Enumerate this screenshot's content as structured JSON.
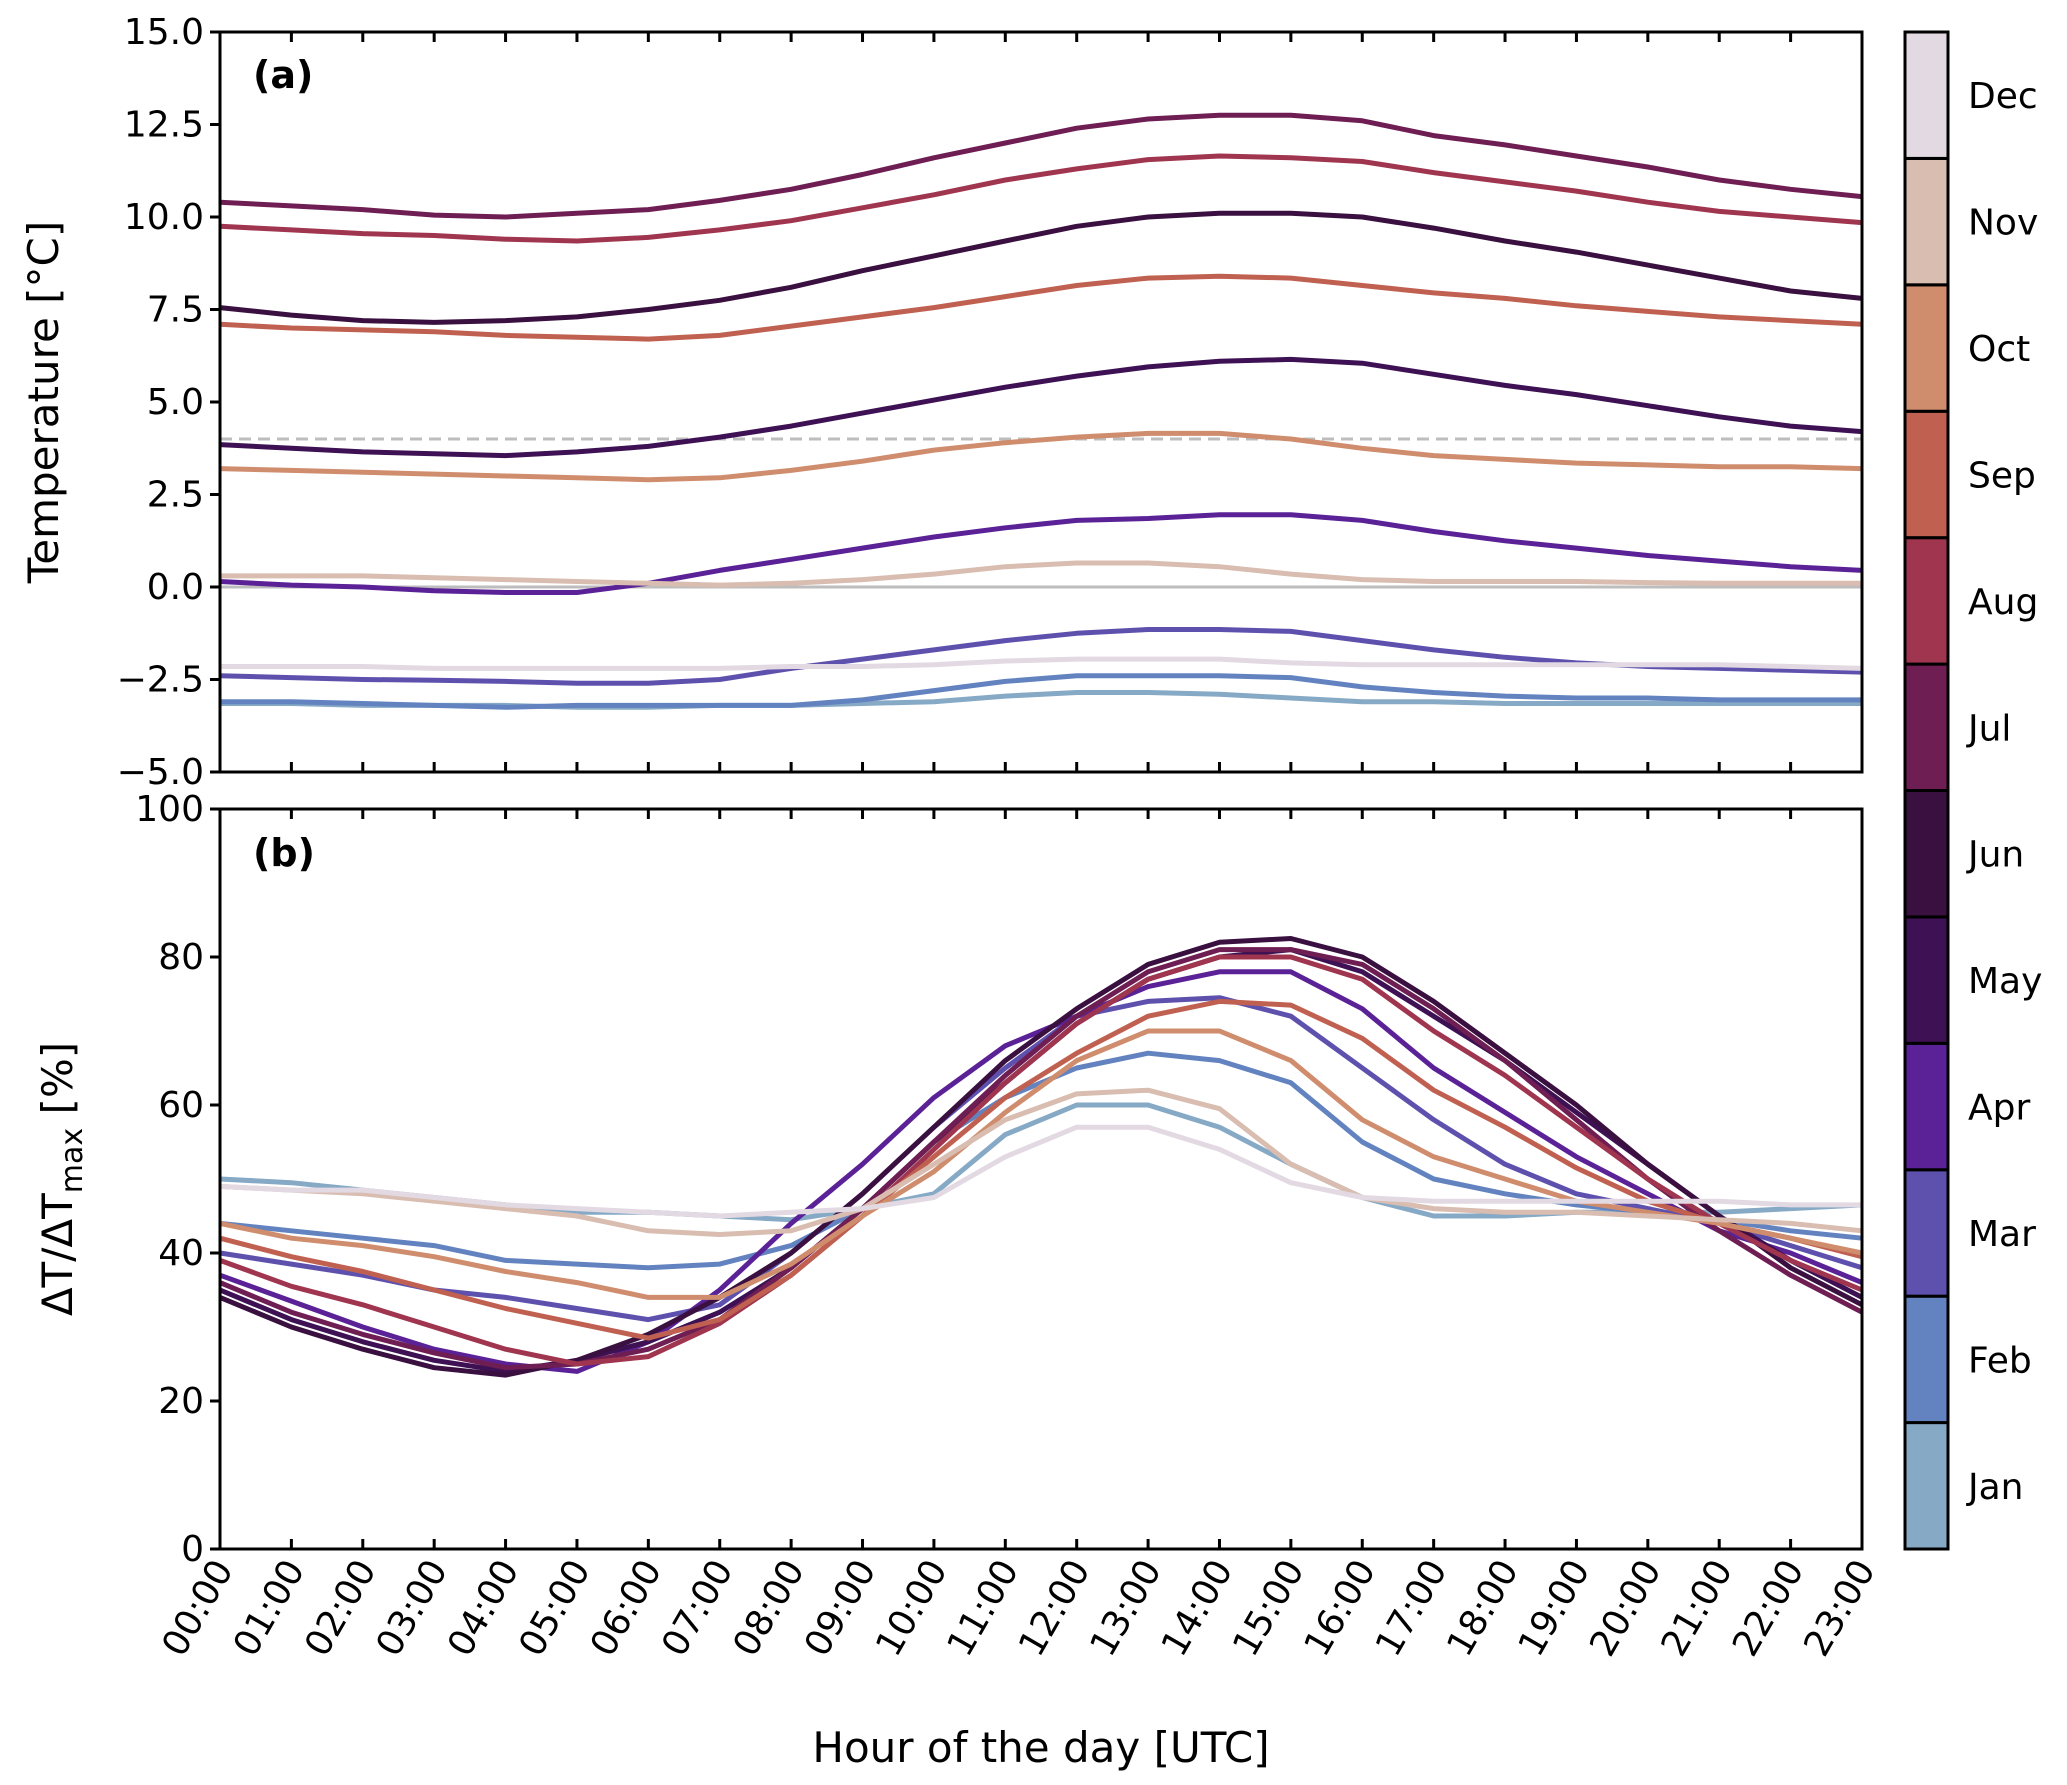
{
  "chart_data": [
    {
      "panel": "a",
      "type": "line",
      "panel_label": "(a)",
      "ylabel": "Temperature [°C]",
      "xlabel": "",
      "ylim": [
        -5.0,
        15.0
      ],
      "yticks": [
        "−5.0",
        "−2.5",
        "0.0",
        "2.5",
        "5.0",
        "7.5",
        "10.0",
        "12.5",
        "15.0"
      ],
      "ytick_values": [
        -5.0,
        -2.5,
        0.0,
        2.5,
        5.0,
        7.5,
        10.0,
        12.5,
        15.0
      ],
      "reference_lines": [
        {
          "value": 4.0,
          "style": "dashed",
          "color": "#bdbdbd"
        },
        {
          "value": 0.0,
          "style": "solid",
          "color": "#bdbdbd"
        }
      ],
      "series": [
        {
          "name": "Jan",
          "color": "#86a9c6",
          "values": [
            -3.15,
            -3.15,
            -3.2,
            -3.2,
            -3.2,
            -3.25,
            -3.25,
            -3.2,
            -3.2,
            -3.15,
            -3.1,
            -2.95,
            -2.85,
            -2.85,
            -2.9,
            -3.0,
            -3.1,
            -3.1,
            -3.15,
            -3.15,
            -3.15,
            -3.15,
            -3.15,
            -3.15
          ]
        },
        {
          "name": "Feb",
          "color": "#6283bf",
          "values": [
            -3.1,
            -3.1,
            -3.15,
            -3.2,
            -3.25,
            -3.2,
            -3.2,
            -3.2,
            -3.2,
            -3.05,
            -2.8,
            -2.55,
            -2.4,
            -2.4,
            -2.4,
            -2.45,
            -2.7,
            -2.85,
            -2.95,
            -3.0,
            -3.0,
            -3.05,
            -3.05,
            -3.05
          ]
        },
        {
          "name": "Mar",
          "color": "#5e51ae",
          "values": [
            -2.4,
            -2.45,
            -2.5,
            -2.52,
            -2.55,
            -2.6,
            -2.6,
            -2.5,
            -2.2,
            -1.95,
            -1.7,
            -1.45,
            -1.25,
            -1.15,
            -1.15,
            -1.2,
            -1.45,
            -1.7,
            -1.9,
            -2.05,
            -2.15,
            -2.2,
            -2.25,
            -2.3
          ]
        },
        {
          "name": "Apr",
          "color": "#5a2296",
          "values": [
            0.15,
            0.05,
            0.0,
            -0.1,
            -0.15,
            -0.15,
            0.1,
            0.45,
            0.75,
            1.05,
            1.35,
            1.6,
            1.8,
            1.85,
            1.95,
            1.95,
            1.8,
            1.5,
            1.25,
            1.05,
            0.85,
            0.7,
            0.55,
            0.45
          ]
        },
        {
          "name": "May",
          "color": "#3d1153",
          "values": [
            3.85,
            3.75,
            3.65,
            3.6,
            3.55,
            3.65,
            3.8,
            4.05,
            4.35,
            4.7,
            5.05,
            5.4,
            5.7,
            5.95,
            6.1,
            6.15,
            6.05,
            5.75,
            5.45,
            5.2,
            4.9,
            4.6,
            4.35,
            4.2
          ]
        },
        {
          "name": "Jun",
          "color": "#3a1040",
          "values": [
            7.55,
            7.35,
            7.2,
            7.15,
            7.2,
            7.3,
            7.5,
            7.75,
            8.1,
            8.55,
            8.95,
            9.35,
            9.75,
            10.0,
            10.1,
            10.1,
            10.0,
            9.7,
            9.35,
            9.05,
            8.7,
            8.35,
            8.0,
            7.8
          ]
        },
        {
          "name": "Jul",
          "color": "#6e1e53",
          "values": [
            10.4,
            10.3,
            10.2,
            10.05,
            10.0,
            10.1,
            10.2,
            10.45,
            10.75,
            11.15,
            11.6,
            12.0,
            12.4,
            12.65,
            12.75,
            12.75,
            12.6,
            12.2,
            11.95,
            11.65,
            11.35,
            11.0,
            10.75,
            10.55
          ]
        },
        {
          "name": "Aug",
          "color": "#a0354f",
          "values": [
            9.75,
            9.65,
            9.55,
            9.5,
            9.4,
            9.35,
            9.45,
            9.65,
            9.9,
            10.25,
            10.6,
            11.0,
            11.3,
            11.55,
            11.65,
            11.6,
            11.5,
            11.2,
            10.95,
            10.7,
            10.4,
            10.15,
            10.0,
            9.85
          ]
        },
        {
          "name": "Sep",
          "color": "#c06050",
          "values": [
            7.1,
            7.0,
            6.95,
            6.9,
            6.8,
            6.75,
            6.7,
            6.8,
            7.05,
            7.3,
            7.55,
            7.85,
            8.15,
            8.35,
            8.4,
            8.35,
            8.15,
            7.95,
            7.8,
            7.6,
            7.45,
            7.3,
            7.2,
            7.1
          ]
        },
        {
          "name": "Oct",
          "color": "#cf8d6e",
          "values": [
            3.2,
            3.15,
            3.1,
            3.05,
            3.0,
            2.95,
            2.9,
            2.95,
            3.15,
            3.4,
            3.7,
            3.9,
            4.05,
            4.15,
            4.15,
            4.0,
            3.75,
            3.55,
            3.45,
            3.35,
            3.3,
            3.25,
            3.25,
            3.2
          ]
        },
        {
          "name": "Nov",
          "color": "#d8bdb0",
          "values": [
            0.3,
            0.3,
            0.3,
            0.25,
            0.2,
            0.15,
            0.1,
            0.05,
            0.1,
            0.2,
            0.35,
            0.55,
            0.65,
            0.65,
            0.55,
            0.35,
            0.2,
            0.15,
            0.15,
            0.15,
            0.12,
            0.1,
            0.1,
            0.1
          ]
        },
        {
          "name": "Dec",
          "color": "#e2d9e2",
          "values": [
            -2.15,
            -2.15,
            -2.15,
            -2.2,
            -2.2,
            -2.2,
            -2.2,
            -2.2,
            -2.15,
            -2.15,
            -2.1,
            -2.0,
            -1.95,
            -1.95,
            -1.95,
            -2.05,
            -2.1,
            -2.1,
            -2.1,
            -2.1,
            -2.1,
            -2.1,
            -2.15,
            -2.2
          ]
        }
      ]
    },
    {
      "panel": "b",
      "type": "line",
      "panel_label": "(b)",
      "ylabel_main": "ΔT/ΔT",
      "ylabel_sub": "max",
      "ylabel_suffix": " [%]",
      "xlabel": "Hour of the day [UTC]",
      "ylim": [
        0,
        100
      ],
      "yticks": [
        "0",
        "20",
        "40",
        "60",
        "80",
        "100"
      ],
      "ytick_values": [
        0,
        20,
        40,
        60,
        80,
        100
      ],
      "series": [
        {
          "name": "Jan",
          "color": "#86a9c6",
          "values": [
            50,
            49.5,
            48.5,
            47.5,
            46.5,
            45.5,
            45.5,
            45,
            44.5,
            46,
            48,
            56,
            60,
            60,
            57,
            52,
            47.5,
            45,
            45,
            45.5,
            45.5,
            45.5,
            46,
            46.5
          ]
        },
        {
          "name": "Feb",
          "color": "#6283bf",
          "values": [
            44,
            43,
            42,
            41,
            39,
            38.5,
            38,
            38.5,
            41,
            46,
            55,
            61,
            65,
            67,
            66,
            63,
            55,
            50,
            48,
            46.5,
            45.5,
            44.5,
            43,
            42
          ]
        },
        {
          "name": "Mar",
          "color": "#5e51ae",
          "values": [
            40,
            38.5,
            37,
            35,
            34,
            32.5,
            31,
            33,
            40,
            48,
            57,
            65,
            72,
            74,
            74.5,
            72,
            65,
            58,
            52,
            48,
            46,
            44,
            41,
            38
          ]
        },
        {
          "name": "Apr",
          "color": "#5a2296",
          "values": [
            37,
            33.5,
            30,
            27,
            25,
            24,
            28,
            35,
            44,
            52,
            61,
            68,
            72,
            76,
            78,
            78,
            73,
            65,
            59,
            53,
            48,
            43,
            40,
            36
          ]
        },
        {
          "name": "May",
          "color": "#3d1153",
          "values": [
            35,
            31,
            28,
            25.5,
            24,
            25.5,
            28,
            32,
            38,
            46,
            55,
            63,
            71,
            77,
            80,
            81,
            78,
            72,
            66,
            59,
            52,
            45,
            39,
            34
          ]
        },
        {
          "name": "Jun",
          "color": "#3a1040",
          "values": [
            34,
            30,
            27,
            24.5,
            23.5,
            25.5,
            29,
            34,
            40,
            48,
            57,
            66,
            73,
            79,
            82,
            82.5,
            80,
            74,
            67,
            60,
            52,
            45,
            38,
            33
          ]
        },
        {
          "name": "Jul",
          "color": "#6e1e53",
          "values": [
            36,
            32,
            29,
            26.5,
            24.5,
            25,
            27,
            31,
            38,
            46,
            55,
            64,
            72,
            78,
            81,
            81,
            79,
            73,
            66,
            58,
            50,
            43,
            37,
            32
          ]
        },
        {
          "name": "Aug",
          "color": "#a0354f",
          "values": [
            39,
            35.5,
            33,
            30,
            27,
            25,
            26,
            30.5,
            37,
            45,
            54,
            63,
            71,
            77,
            80,
            80,
            77,
            70,
            64,
            57,
            50,
            44,
            39,
            35
          ]
        },
        {
          "name": "Sep",
          "color": "#c06050",
          "values": [
            42,
            39.5,
            37.5,
            35,
            32.5,
            30.5,
            28.5,
            31,
            37,
            45,
            53,
            61,
            67,
            72,
            74,
            73.5,
            69,
            62,
            57,
            51.5,
            47,
            44,
            42,
            39.5
          ]
        },
        {
          "name": "Oct",
          "color": "#cf8d6e",
          "values": [
            44,
            42,
            41,
            39.5,
            37.5,
            36,
            34,
            34,
            38.5,
            45,
            51,
            59,
            66,
            70,
            70,
            66,
            58,
            53,
            50,
            47,
            45.5,
            44,
            42,
            40
          ]
        },
        {
          "name": "Nov",
          "color": "#d8bdb0",
          "values": [
            49,
            48.5,
            48,
            47,
            46,
            45,
            43,
            42.5,
            43,
            46,
            52,
            58,
            61.5,
            62,
            59.5,
            52,
            47.5,
            46,
            45.5,
            45.5,
            45,
            44.5,
            44,
            43
          ]
        },
        {
          "name": "Dec",
          "color": "#e2d9e2",
          "values": [
            49,
            48.5,
            48.5,
            47.5,
            46.5,
            46,
            45.5,
            45,
            45.5,
            46,
            47.5,
            53,
            57,
            57,
            54,
            49.5,
            47.5,
            47,
            47,
            47,
            47,
            47,
            46.5,
            46.5
          ]
        }
      ]
    }
  ],
  "x_categories": [
    "00:00",
    "01:00",
    "02:00",
    "03:00",
    "04:00",
    "05:00",
    "06:00",
    "07:00",
    "08:00",
    "09:00",
    "10:00",
    "11:00",
    "12:00",
    "13:00",
    "14:00",
    "15:00",
    "16:00",
    "17:00",
    "18:00",
    "19:00",
    "20:00",
    "21:00",
    "22:00",
    "23:00"
  ],
  "colorbar": {
    "labels": [
      "Jan",
      "Feb",
      "Mar",
      "Apr",
      "May",
      "Jun",
      "Jul",
      "Aug",
      "Sep",
      "Oct",
      "Nov",
      "Dec"
    ],
    "colors": [
      "#86a9c6",
      "#6283bf",
      "#5e51ae",
      "#5a2296",
      "#3d1153",
      "#3a1040",
      "#6e1e53",
      "#a0354f",
      "#c06050",
      "#cf8d6e",
      "#d8bdb0",
      "#e2d9e2"
    ]
  }
}
